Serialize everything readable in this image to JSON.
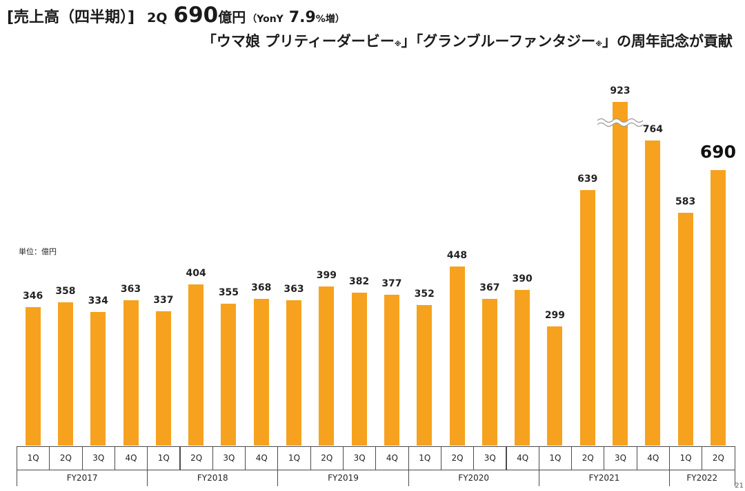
{
  "colors": {
    "bar": "#F6A21E",
    "break_line": "#9a9a9a"
  },
  "chart_data": {
    "type": "bar",
    "title": {
      "section": "[売上高（四半期）]",
      "quarter": "2Q",
      "value": "690",
      "unit": "億円",
      "yony_prefix": "（YonY",
      "yony_value": "7.9",
      "yony_suffix": "%増）"
    },
    "subtitle": {
      "part1": "「ウマ娘 プリティーダービー",
      "mark1": "※",
      "part2": "」「グランブルーファンタジー",
      "mark2": "※",
      "part3": "」の周年記念が貢献"
    },
    "xlabel": "",
    "ylabel": "単位：億円",
    "groups": [
      {
        "label": "FY2017",
        "quarters": [
          "1Q",
          "2Q",
          "3Q",
          "4Q"
        ],
        "values": [
          346,
          358,
          334,
          363
        ]
      },
      {
        "label": "FY2018",
        "quarters": [
          "1Q",
          "2Q",
          "3Q",
          "4Q"
        ],
        "values": [
          337,
          404,
          355,
          368
        ]
      },
      {
        "label": "FY2019",
        "quarters": [
          "1Q",
          "2Q",
          "3Q",
          "4Q"
        ],
        "values": [
          363,
          399,
          382,
          377
        ]
      },
      {
        "label": "FY2020",
        "quarters": [
          "1Q",
          "2Q",
          "3Q",
          "4Q"
        ],
        "values": [
          352,
          448,
          367,
          390
        ]
      },
      {
        "label": "FY2021",
        "quarters": [
          "1Q",
          "2Q",
          "3Q",
          "4Q"
        ],
        "values": [
          299,
          639,
          923,
          764
        ]
      },
      {
        "label": "FY2022",
        "quarters": [
          "1Q",
          "2Q"
        ],
        "values": [
          583,
          690
        ]
      }
    ]
  },
  "page_number": "21"
}
